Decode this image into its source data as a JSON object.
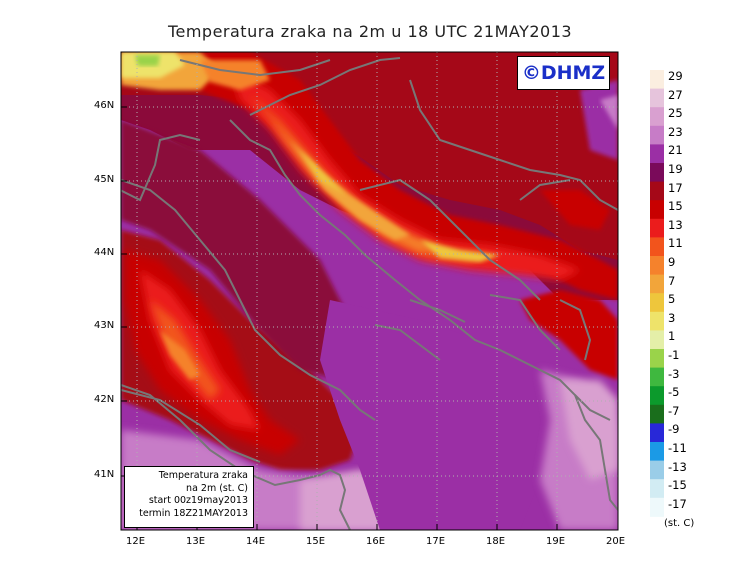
{
  "title": "Temperatura zraka na 2m u 18 UTC 21MAY2013",
  "logo_text": "©DHMZ",
  "info_box": {
    "line1": "Temperatura zraka",
    "line2": "na 2m (st. C)",
    "line3": "start 00z19may2013",
    "line4": "termin 18Z21MAY2013"
  },
  "lat_labels": [
    "46N",
    "45N",
    "44N",
    "43N",
    "42N",
    "41N"
  ],
  "lon_labels": [
    "12E",
    "13E",
    "14E",
    "15E",
    "16E",
    "17E",
    "18E",
    "19E",
    "20E"
  ],
  "legend": {
    "unit": "(st. C)",
    "labels": [
      "29",
      "27",
      "25",
      "23",
      "21",
      "19",
      "17",
      "15",
      "13",
      "11",
      "9",
      "7",
      "5",
      "3",
      "1",
      "-1",
      "-3",
      "-5",
      "-7",
      "-9",
      "-11",
      "-13",
      "-15",
      "-17"
    ],
    "colors": [
      "#fbeee0",
      "#e6c4dc",
      "#d9a0d0",
      "#c77cc7",
      "#9b2fa5",
      "#7a0a5a",
      "#a50818",
      "#c80000",
      "#eb1c1c",
      "#f2541c",
      "#f5822c",
      "#f2a53a",
      "#eec63c",
      "#eee36a",
      "#e4efa8",
      "#9ad34a",
      "#3fb83f",
      "#0c9a2c",
      "#1a6e1c",
      "#2828d8",
      "#1b9ae6",
      "#9acde8",
      "#d2ecf3",
      "#eef9fb"
    ]
  },
  "colors": {
    "land_outline": "#777777",
    "grid": "#b0b0b0"
  }
}
